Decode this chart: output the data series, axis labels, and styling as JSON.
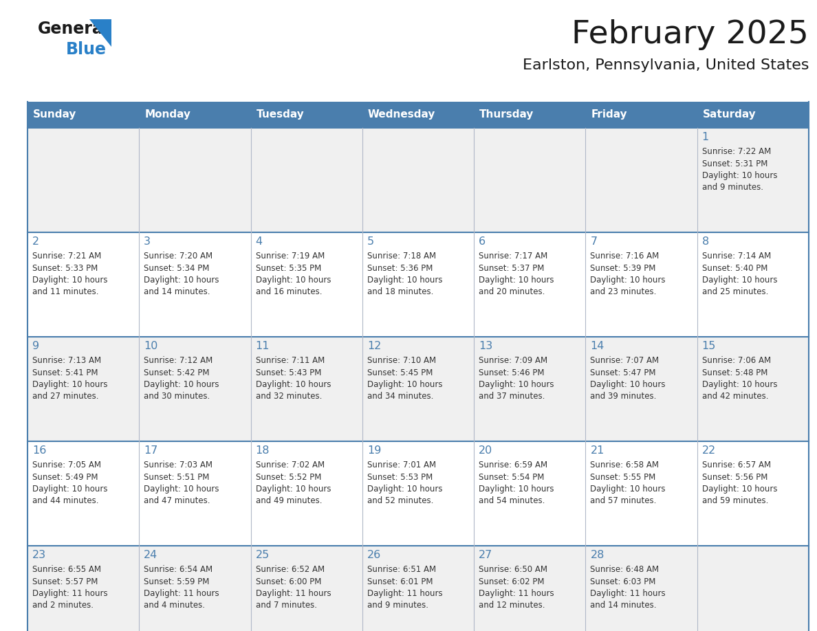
{
  "title": "February 2025",
  "subtitle": "Earlston, Pennsylvania, United States",
  "header_bg": "#4a7ead",
  "header_text_color": "#ffffff",
  "row_bg_light": "#f0f0f0",
  "row_bg_white": "#ffffff",
  "border_color": "#4a7ead",
  "sep_color": "#b0b8c8",
  "day_headers": [
    "Sunday",
    "Monday",
    "Tuesday",
    "Wednesday",
    "Thursday",
    "Friday",
    "Saturday"
  ],
  "title_color": "#1a1a1a",
  "subtitle_color": "#1a1a1a",
  "day_num_color": "#4a7ead",
  "cell_text_color": "#333333",
  "days": [
    {
      "day": 1,
      "col": 6,
      "row": 0,
      "sunrise": "7:22 AM",
      "sunset": "5:31 PM",
      "daylight": "10 hours and 9 minutes."
    },
    {
      "day": 2,
      "col": 0,
      "row": 1,
      "sunrise": "7:21 AM",
      "sunset": "5:33 PM",
      "daylight": "10 hours and 11 minutes."
    },
    {
      "day": 3,
      "col": 1,
      "row": 1,
      "sunrise": "7:20 AM",
      "sunset": "5:34 PM",
      "daylight": "10 hours and 14 minutes."
    },
    {
      "day": 4,
      "col": 2,
      "row": 1,
      "sunrise": "7:19 AM",
      "sunset": "5:35 PM",
      "daylight": "10 hours and 16 minutes."
    },
    {
      "day": 5,
      "col": 3,
      "row": 1,
      "sunrise": "7:18 AM",
      "sunset": "5:36 PM",
      "daylight": "10 hours and 18 minutes."
    },
    {
      "day": 6,
      "col": 4,
      "row": 1,
      "sunrise": "7:17 AM",
      "sunset": "5:37 PM",
      "daylight": "10 hours and 20 minutes."
    },
    {
      "day": 7,
      "col": 5,
      "row": 1,
      "sunrise": "7:16 AM",
      "sunset": "5:39 PM",
      "daylight": "10 hours and 23 minutes."
    },
    {
      "day": 8,
      "col": 6,
      "row": 1,
      "sunrise": "7:14 AM",
      "sunset": "5:40 PM",
      "daylight": "10 hours and 25 minutes."
    },
    {
      "day": 9,
      "col": 0,
      "row": 2,
      "sunrise": "7:13 AM",
      "sunset": "5:41 PM",
      "daylight": "10 hours and 27 minutes."
    },
    {
      "day": 10,
      "col": 1,
      "row": 2,
      "sunrise": "7:12 AM",
      "sunset": "5:42 PM",
      "daylight": "10 hours and 30 minutes."
    },
    {
      "day": 11,
      "col": 2,
      "row": 2,
      "sunrise": "7:11 AM",
      "sunset": "5:43 PM",
      "daylight": "10 hours and 32 minutes."
    },
    {
      "day": 12,
      "col": 3,
      "row": 2,
      "sunrise": "7:10 AM",
      "sunset": "5:45 PM",
      "daylight": "10 hours and 34 minutes."
    },
    {
      "day": 13,
      "col": 4,
      "row": 2,
      "sunrise": "7:09 AM",
      "sunset": "5:46 PM",
      "daylight": "10 hours and 37 minutes."
    },
    {
      "day": 14,
      "col": 5,
      "row": 2,
      "sunrise": "7:07 AM",
      "sunset": "5:47 PM",
      "daylight": "10 hours and 39 minutes."
    },
    {
      "day": 15,
      "col": 6,
      "row": 2,
      "sunrise": "7:06 AM",
      "sunset": "5:48 PM",
      "daylight": "10 hours and 42 minutes."
    },
    {
      "day": 16,
      "col": 0,
      "row": 3,
      "sunrise": "7:05 AM",
      "sunset": "5:49 PM",
      "daylight": "10 hours and 44 minutes."
    },
    {
      "day": 17,
      "col": 1,
      "row": 3,
      "sunrise": "7:03 AM",
      "sunset": "5:51 PM",
      "daylight": "10 hours and 47 minutes."
    },
    {
      "day": 18,
      "col": 2,
      "row": 3,
      "sunrise": "7:02 AM",
      "sunset": "5:52 PM",
      "daylight": "10 hours and 49 minutes."
    },
    {
      "day": 19,
      "col": 3,
      "row": 3,
      "sunrise": "7:01 AM",
      "sunset": "5:53 PM",
      "daylight": "10 hours and 52 minutes."
    },
    {
      "day": 20,
      "col": 4,
      "row": 3,
      "sunrise": "6:59 AM",
      "sunset": "5:54 PM",
      "daylight": "10 hours and 54 minutes."
    },
    {
      "day": 21,
      "col": 5,
      "row": 3,
      "sunrise": "6:58 AM",
      "sunset": "5:55 PM",
      "daylight": "10 hours and 57 minutes."
    },
    {
      "day": 22,
      "col": 6,
      "row": 3,
      "sunrise": "6:57 AM",
      "sunset": "5:56 PM",
      "daylight": "10 hours and 59 minutes."
    },
    {
      "day": 23,
      "col": 0,
      "row": 4,
      "sunrise": "6:55 AM",
      "sunset": "5:57 PM",
      "daylight": "11 hours and 2 minutes."
    },
    {
      "day": 24,
      "col": 1,
      "row": 4,
      "sunrise": "6:54 AM",
      "sunset": "5:59 PM",
      "daylight": "11 hours and 4 minutes."
    },
    {
      "day": 25,
      "col": 2,
      "row": 4,
      "sunrise": "6:52 AM",
      "sunset": "6:00 PM",
      "daylight": "11 hours and 7 minutes."
    },
    {
      "day": 26,
      "col": 3,
      "row": 4,
      "sunrise": "6:51 AM",
      "sunset": "6:01 PM",
      "daylight": "11 hours and 9 minutes."
    },
    {
      "day": 27,
      "col": 4,
      "row": 4,
      "sunrise": "6:50 AM",
      "sunset": "6:02 PM",
      "daylight": "11 hours and 12 minutes."
    },
    {
      "day": 28,
      "col": 5,
      "row": 4,
      "sunrise": "6:48 AM",
      "sunset": "6:03 PM",
      "daylight": "11 hours and 14 minutes."
    }
  ],
  "num_rows": 5,
  "logo_general_color": "#1a1a1a",
  "logo_blue_color": "#2980c8",
  "fig_width": 11.88,
  "fig_height": 9.18,
  "dpi": 100
}
